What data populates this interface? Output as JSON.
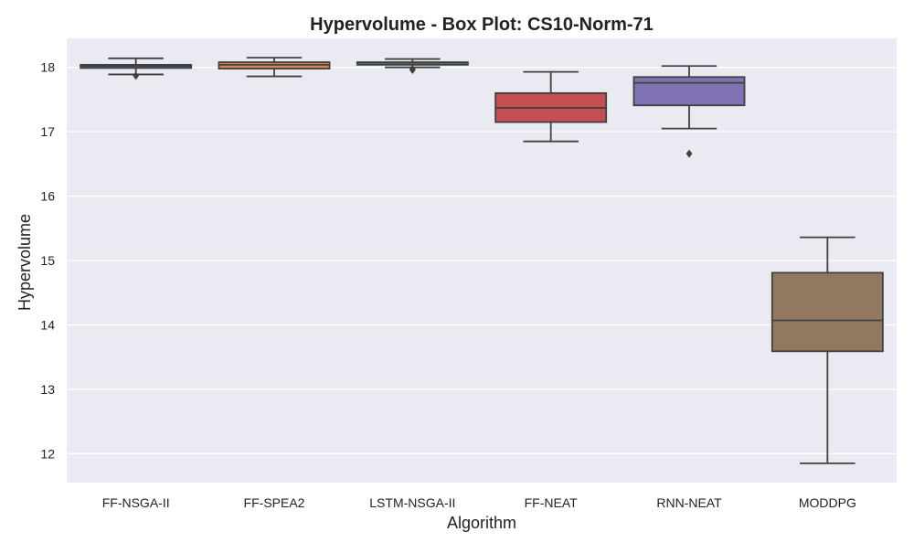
{
  "chart_data": {
    "type": "box",
    "title": "Hypervolume - Box Plot: CS10-Norm-71",
    "xlabel": "Algorithm",
    "ylabel": "Hypervolume",
    "ylim": [
      11.55,
      18.45
    ],
    "yticks": [
      12,
      13,
      14,
      15,
      16,
      17,
      18
    ],
    "grid": true,
    "legend": "none",
    "colors": {
      "background": "#eaeaf2",
      "grid": "#ffffff",
      "line": "#404040"
    },
    "categories": [
      "FF-NSGA-II",
      "FF-SPEA2",
      "LSTM-NSGA-II",
      "FF-NEAT",
      "RNN-NEAT",
      "MODDPG"
    ],
    "boxes": [
      {
        "label": "FF-NSGA-II",
        "color": "#4c72b0",
        "whisker_low": 17.89,
        "q1": 17.99,
        "median": 18.02,
        "q3": 18.04,
        "whisker_high": 18.14,
        "outliers": [
          17.87
        ]
      },
      {
        "label": "FF-SPEA2",
        "color": "#dd8452",
        "whisker_low": 17.86,
        "q1": 17.98,
        "median": 18.04,
        "q3": 18.08,
        "whisker_high": 18.15,
        "outliers": []
      },
      {
        "label": "LSTM-NSGA-II",
        "color": "#55a868",
        "whisker_low": 18.0,
        "q1": 18.04,
        "median": 18.07,
        "q3": 18.08,
        "whisker_high": 18.13,
        "outliers": [
          17.96,
          17.97
        ]
      },
      {
        "label": "FF-NEAT",
        "color": "#c44e52",
        "whisker_low": 16.85,
        "q1": 17.15,
        "median": 17.37,
        "q3": 17.6,
        "whisker_high": 17.93,
        "outliers": []
      },
      {
        "label": "RNN-NEAT",
        "color": "#8172b3",
        "whisker_low": 17.05,
        "q1": 17.41,
        "median": 17.76,
        "q3": 17.85,
        "whisker_high": 18.02,
        "outliers": [
          16.66
        ]
      },
      {
        "label": "MODDPG",
        "color": "#937860",
        "whisker_low": 11.85,
        "q1": 13.59,
        "median": 14.07,
        "q3": 14.81,
        "whisker_high": 15.36,
        "outliers": []
      }
    ]
  }
}
